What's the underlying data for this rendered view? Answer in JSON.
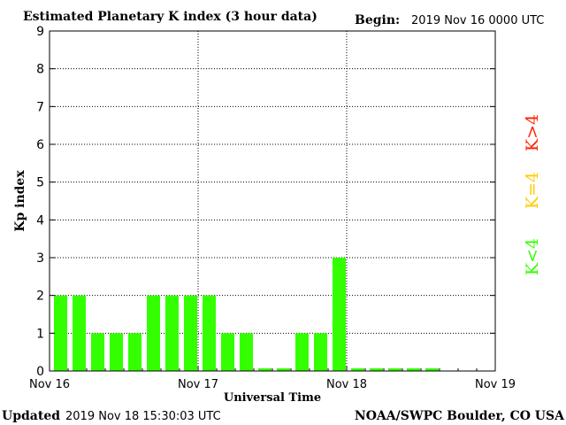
{
  "chart_data": {
    "type": "bar",
    "title": "Estimated Planetary K index (3 hour data)",
    "begin_label": "Begin:",
    "begin_value": "2019 Nov 16 0000 UTC",
    "xlabel": "Universal Time",
    "ylabel": "Kp index",
    "ylim": [
      0,
      9
    ],
    "yticks": [
      "0",
      "1",
      "2",
      "3",
      "4",
      "5",
      "6",
      "7",
      "8",
      "9"
    ],
    "x_range_hours": [
      0,
      72
    ],
    "xticks": [
      {
        "hour": 0,
        "label": "Nov 16"
      },
      {
        "hour": 24,
        "label": "Nov 17"
      },
      {
        "hour": 48,
        "label": "Nov 18"
      },
      {
        "hour": 72,
        "label": "Nov 19"
      }
    ],
    "interval_hours": 3,
    "values": [
      2,
      2,
      1,
      1,
      1,
      2,
      2,
      2,
      2,
      1,
      1,
      0,
      0,
      1,
      1,
      3,
      0,
      0,
      0,
      0,
      0
    ],
    "grid": true,
    "bar_color": "#33ff00",
    "legend": [
      {
        "label": "K<4",
        "color": "#33ff00"
      },
      {
        "label": "K=4",
        "color": "#ffcc00"
      },
      {
        "label": "K>4",
        "color": "#ff2200"
      }
    ]
  },
  "footer": {
    "updated_label": "Updated",
    "updated_value": "2019 Nov 18 15:30:03 UTC",
    "source": "NOAA/SWPC Boulder, CO USA"
  }
}
